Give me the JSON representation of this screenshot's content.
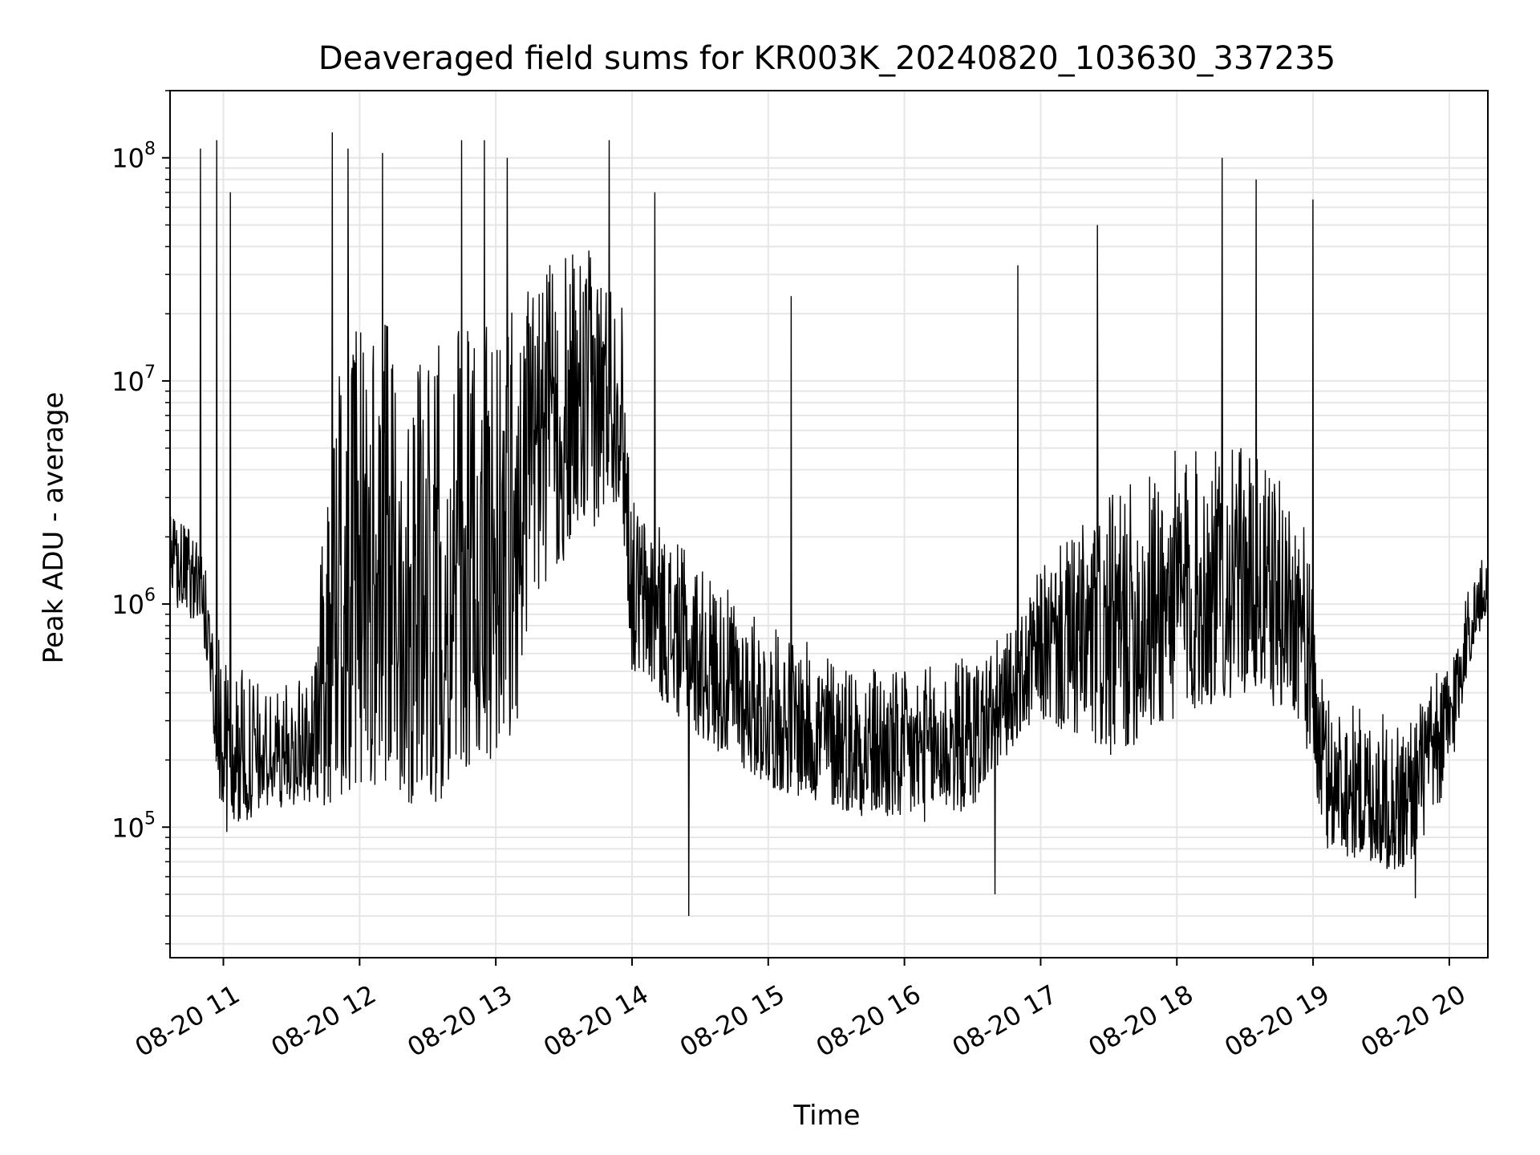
{
  "chart_data": {
    "type": "line",
    "title": "Deaveraged field sums for KR003K_20240820_103630_337235",
    "xlabel": "Time",
    "ylabel": "Peak ADU - average",
    "yscale": "log",
    "ylim": [
      26000,
      200000000
    ],
    "xlim": [
      "2024-08-20 10:36:30",
      "2024-08-20 20:17:00"
    ],
    "grid": true,
    "line_color": "#000000",
    "x_ticks": [
      {
        "time": "2024-08-20 11:00",
        "label": "08-20 11"
      },
      {
        "time": "2024-08-20 12:00",
        "label": "08-20 12"
      },
      {
        "time": "2024-08-20 13:00",
        "label": "08-20 13"
      },
      {
        "time": "2024-08-20 14:00",
        "label": "08-20 14"
      },
      {
        "time": "2024-08-20 15:00",
        "label": "08-20 15"
      },
      {
        "time": "2024-08-20 16:00",
        "label": "08-20 16"
      },
      {
        "time": "2024-08-20 17:00",
        "label": "08-20 17"
      },
      {
        "time": "2024-08-20 18:00",
        "label": "08-20 18"
      },
      {
        "time": "2024-08-20 19:00",
        "label": "08-20 19"
      },
      {
        "time": "2024-08-20 20:00",
        "label": "08-20 20"
      }
    ],
    "y_ticks": [
      {
        "value": 100000,
        "base": "10",
        "exp": "5"
      },
      {
        "value": 1000000,
        "base": "10",
        "exp": "6"
      },
      {
        "value": 10000000,
        "base": "10",
        "exp": "7"
      },
      {
        "value": 100000000,
        "base": "10",
        "exp": "8"
      }
    ],
    "series": [
      {
        "envelope": [
          {
            "time": "2024-08-20 10:36:30",
            "low": 1000000,
            "high": 2500000
          },
          {
            "time": "2024-08-20 10:50",
            "low": 800000,
            "high": 2000000
          },
          {
            "time": "2024-08-20 10:55",
            "low": 300000,
            "high": 1000000
          },
          {
            "time": "2024-08-20 11:00",
            "low": 90000,
            "high": 600000
          },
          {
            "time": "2024-08-20 11:20",
            "low": 120000,
            "high": 400000
          },
          {
            "time": "2024-08-20 11:40",
            "low": 130000,
            "high": 500000
          },
          {
            "time": "2024-08-20 11:48",
            "low": 120000,
            "high": 12000000
          },
          {
            "time": "2024-08-20 12:00",
            "low": 150000,
            "high": 20000000
          },
          {
            "time": "2024-08-20 12:30",
            "low": 120000,
            "high": 15000000
          },
          {
            "time": "2024-08-20 13:00",
            "low": 200000,
            "high": 20000000
          },
          {
            "time": "2024-08-20 13:10",
            "low": 300000,
            "high": 25000000
          },
          {
            "time": "2024-08-20 13:15",
            "low": 1000000,
            "high": 30000000
          },
          {
            "time": "2024-08-20 13:40",
            "low": 2000000,
            "high": 40000000
          },
          {
            "time": "2024-08-20 13:55",
            "low": 3000000,
            "high": 30000000
          },
          {
            "time": "2024-08-20 14:00",
            "low": 500000,
            "high": 3000000
          },
          {
            "time": "2024-08-20 14:30",
            "low": 250000,
            "high": 1500000
          },
          {
            "time": "2024-08-20 15:00",
            "low": 150000,
            "high": 800000
          },
          {
            "time": "2024-08-20 15:30",
            "low": 120000,
            "high": 600000
          },
          {
            "time": "2024-08-20 16:00",
            "low": 100000,
            "high": 500000
          },
          {
            "time": "2024-08-20 16:30",
            "low": 120000,
            "high": 600000
          },
          {
            "time": "2024-08-20 16:50",
            "low": 250000,
            "high": 800000
          },
          {
            "time": "2024-08-20 17:00",
            "low": 300000,
            "high": 1500000
          },
          {
            "time": "2024-08-20 17:30",
            "low": 200000,
            "high": 3000000
          },
          {
            "time": "2024-08-20 18:00",
            "low": 300000,
            "high": 5000000
          },
          {
            "time": "2024-08-20 18:30",
            "low": 400000,
            "high": 5000000
          },
          {
            "time": "2024-08-20 18:55",
            "low": 300000,
            "high": 3000000
          },
          {
            "time": "2024-08-20 19:05",
            "low": 80000,
            "high": 400000
          },
          {
            "time": "2024-08-20 19:40",
            "low": 60000,
            "high": 300000
          },
          {
            "time": "2024-08-20 20:00",
            "low": 150000,
            "high": 600000
          },
          {
            "time": "2024-08-20 20:08",
            "low": 500000,
            "high": 1200000
          },
          {
            "time": "2024-08-20 20:17",
            "low": 900000,
            "high": 1800000
          }
        ],
        "spikes": [
          {
            "time": "2024-08-20 10:50",
            "value": 110000000
          },
          {
            "time": "2024-08-20 10:57",
            "value": 120000000
          },
          {
            "time": "2024-08-20 11:03",
            "value": 70000000
          },
          {
            "time": "2024-08-20 11:48",
            "value": 130000000
          },
          {
            "time": "2024-08-20 11:55",
            "value": 110000000
          },
          {
            "time": "2024-08-20 12:10",
            "value": 105000000
          },
          {
            "time": "2024-08-20 12:45",
            "value": 120000000
          },
          {
            "time": "2024-08-20 12:55",
            "value": 120000000
          },
          {
            "time": "2024-08-20 13:05",
            "value": 100000000
          },
          {
            "time": "2024-08-20 13:50",
            "value": 120000000
          },
          {
            "time": "2024-08-20 14:10",
            "value": 70000000
          },
          {
            "time": "2024-08-20 15:10",
            "value": 24000000
          },
          {
            "time": "2024-08-20 16:50",
            "value": 33000000
          },
          {
            "time": "2024-08-20 17:25",
            "value": 50000000
          },
          {
            "time": "2024-08-20 18:20",
            "value": 100000000
          },
          {
            "time": "2024-08-20 18:35",
            "value": 80000000
          },
          {
            "time": "2024-08-20 19:00",
            "value": 65000000
          },
          {
            "time": "2024-08-20 14:25",
            "value": 40000
          },
          {
            "time": "2024-08-20 16:40",
            "value": 50000
          },
          {
            "time": "2024-08-20 19:45",
            "value": 48000
          }
        ]
      }
    ]
  }
}
